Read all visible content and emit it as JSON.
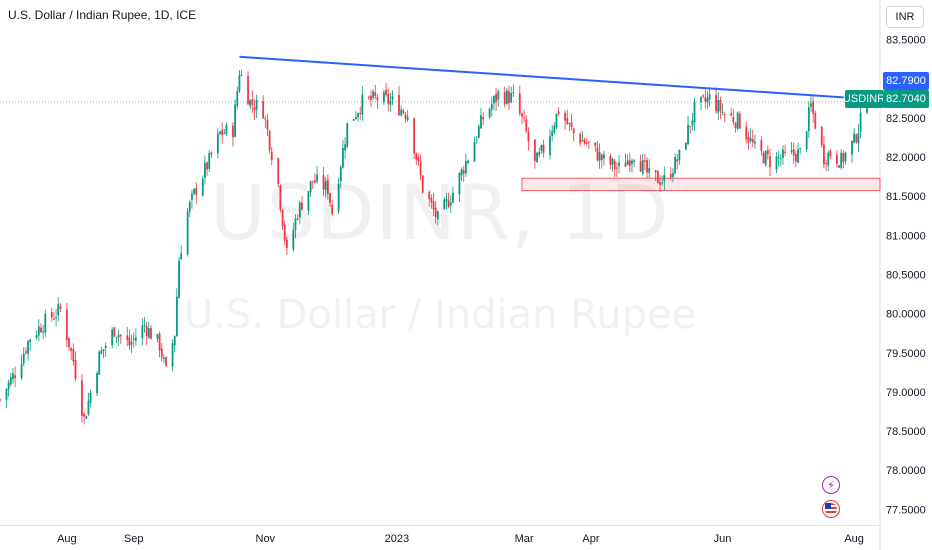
{
  "header": {
    "title": "U.S. Dollar / Indian Rupee, 1D, ICE",
    "currency_button": "INR",
    "watermark_ticker": "USDINR, 1D",
    "watermark_name": "U.S. Dollar / Indian Rupee"
  },
  "price_tags": {
    "resistance_label": "82.7900",
    "resistance_color": "#2962ff",
    "symbol_label": "USDINR",
    "last_price_label": "82.7040",
    "last_price_color": "#089981"
  },
  "icons": [
    "lightning-bolt-icon",
    "us-flag-icon"
  ],
  "chart_data": {
    "type": "candlestick",
    "y_ticks": [
      "83.5000",
      "83.0000",
      "82.5000",
      "82.0000",
      "81.5000",
      "81.0000",
      "80.5000",
      "80.0000",
      "79.5000",
      "79.0000",
      "78.5000",
      "78.0000",
      "77.5000"
    ],
    "ylim": [
      77.3,
      83.75
    ],
    "x_ticks": [
      "Aug",
      "Sep",
      "Nov",
      "2023",
      "Mar",
      "Apr",
      "Jun",
      "Aug"
    ],
    "x_tick_dates": [
      "2022-08-01",
      "2022-09-01",
      "2022-11-01",
      "2023-01-01",
      "2023-03-01",
      "2023-04-01",
      "2023-06-01",
      "2023-08-01"
    ],
    "xlim": [
      "2022-07-01",
      "2023-08-13"
    ],
    "up_color": "#089981",
    "down_color": "#f23645",
    "anchors": [
      [
        "2022-07-01",
        78.9
      ],
      [
        "2022-07-08",
        79.25
      ],
      [
        "2022-07-15",
        79.7
      ],
      [
        "2022-07-22",
        79.9
      ],
      [
        "2022-07-29",
        80.05
      ],
      [
        "2022-08-04",
        79.4
      ],
      [
        "2022-08-09",
        78.65
      ],
      [
        "2022-08-16",
        79.45
      ],
      [
        "2022-08-23",
        79.8
      ],
      [
        "2022-08-30",
        79.6
      ],
      [
        "2022-09-06",
        79.85
      ],
      [
        "2022-09-13",
        79.6
      ],
      [
        "2022-09-16",
        79.25
      ],
      [
        "2022-09-20",
        79.75
      ],
      [
        "2022-09-22",
        80.7
      ],
      [
        "2022-09-26",
        81.3
      ],
      [
        "2022-09-30",
        81.6
      ],
      [
        "2022-10-06",
        81.95
      ],
      [
        "2022-10-11",
        82.3
      ],
      [
        "2022-10-17",
        82.35
      ],
      [
        "2022-10-20",
        83.1
      ],
      [
        "2022-10-25",
        82.7
      ],
      [
        "2022-10-31",
        82.6
      ],
      [
        "2022-11-07",
        81.65
      ],
      [
        "2022-11-11",
        80.75
      ],
      [
        "2022-11-16",
        81.3
      ],
      [
        "2022-11-23",
        81.7
      ],
      [
        "2022-11-30",
        81.6
      ],
      [
        "2022-12-02",
        81.3
      ],
      [
        "2022-12-09",
        82.4
      ],
      [
        "2022-12-16",
        82.7
      ],
      [
        "2022-12-23",
        82.75
      ],
      [
        "2022-12-30",
        82.7
      ],
      [
        "2023-01-06",
        82.55
      ],
      [
        "2023-01-13",
        81.6
      ],
      [
        "2023-01-20",
        81.2
      ],
      [
        "2023-01-27",
        81.55
      ],
      [
        "2023-02-03",
        82.0
      ],
      [
        "2023-02-10",
        82.5
      ],
      [
        "2023-02-17",
        82.8
      ],
      [
        "2023-02-24",
        82.75
      ],
      [
        "2023-03-01",
        82.4
      ],
      [
        "2023-03-06",
        81.9
      ],
      [
        "2023-03-10",
        82.1
      ],
      [
        "2023-03-17",
        82.6
      ],
      [
        "2023-03-24",
        82.3
      ],
      [
        "2023-03-31",
        82.15
      ],
      [
        "2023-04-07",
        81.95
      ],
      [
        "2023-04-14",
        81.85
      ],
      [
        "2023-04-21",
        82.05
      ],
      [
        "2023-04-28",
        81.75
      ],
      [
        "2023-05-05",
        81.7
      ],
      [
        "2023-05-12",
        82.0
      ],
      [
        "2023-05-19",
        82.6
      ],
      [
        "2023-05-26",
        82.75
      ],
      [
        "2023-06-02",
        82.55
      ],
      [
        "2023-06-09",
        82.45
      ],
      [
        "2023-06-16",
        82.1
      ],
      [
        "2023-06-23",
        81.95
      ],
      [
        "2023-06-30",
        82.0
      ],
      [
        "2023-07-07",
        82.05
      ],
      [
        "2023-07-12",
        82.65
      ],
      [
        "2023-07-18",
        82.0
      ],
      [
        "2023-07-21",
        82.05
      ],
      [
        "2023-07-26",
        81.95
      ],
      [
        "2023-08-01",
        82.2
      ],
      [
        "2023-08-07",
        82.72
      ]
    ],
    "overlays": {
      "trendline": {
        "start": [
          "2022-10-20",
          83.28
        ],
        "end": [
          "2023-08-13",
          82.73
        ],
        "color": "#2962ff"
      },
      "support_zone": {
        "from": "2023-02-28",
        "to": "2023-08-13",
        "low": 81.57,
        "high": 81.73
      }
    }
  }
}
